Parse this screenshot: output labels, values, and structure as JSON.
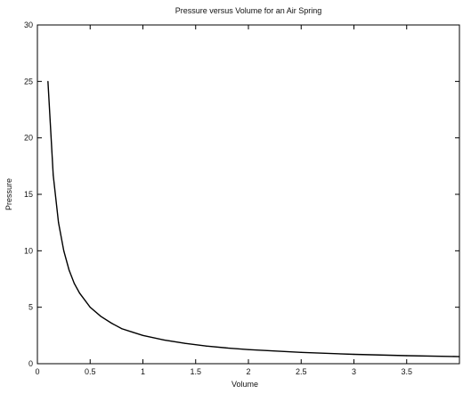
{
  "chart_data": {
    "type": "line",
    "title": "Pressure versus Volume for an Air Spring",
    "xlabel": "Volume",
    "ylabel": "Pressure",
    "xlim": [
      0,
      4
    ],
    "ylim": [
      0,
      30
    ],
    "xticks": [
      0,
      0.5,
      1,
      1.5,
      2,
      2.5,
      3,
      3.5
    ],
    "xtick_labels": [
      "0",
      "0.5",
      "1",
      "1.5",
      "2",
      "2.5",
      "3",
      "3.5"
    ],
    "yticks": [
      0,
      5,
      10,
      15,
      20,
      25,
      30
    ],
    "ytick_labels": [
      "0",
      "5",
      "10",
      "15",
      "20",
      "25",
      "30"
    ],
    "grid": false,
    "series": [
      {
        "x": [
          0.1,
          0.15,
          0.2,
          0.25,
          0.3,
          0.35,
          0.4,
          0.5,
          0.6,
          0.7,
          0.8,
          0.9,
          1.0,
          1.2,
          1.4,
          1.6,
          1.8,
          2.0,
          2.5,
          3.0,
          3.5,
          4.0
        ],
        "y": [
          25,
          16.7,
          12.5,
          10,
          8.3,
          7.1,
          6.25,
          5,
          4.2,
          3.6,
          3.1,
          2.8,
          2.5,
          2.1,
          1.8,
          1.56,
          1.39,
          1.25,
          1.0,
          0.83,
          0.71,
          0.63
        ],
        "color": "#000000"
      }
    ]
  }
}
